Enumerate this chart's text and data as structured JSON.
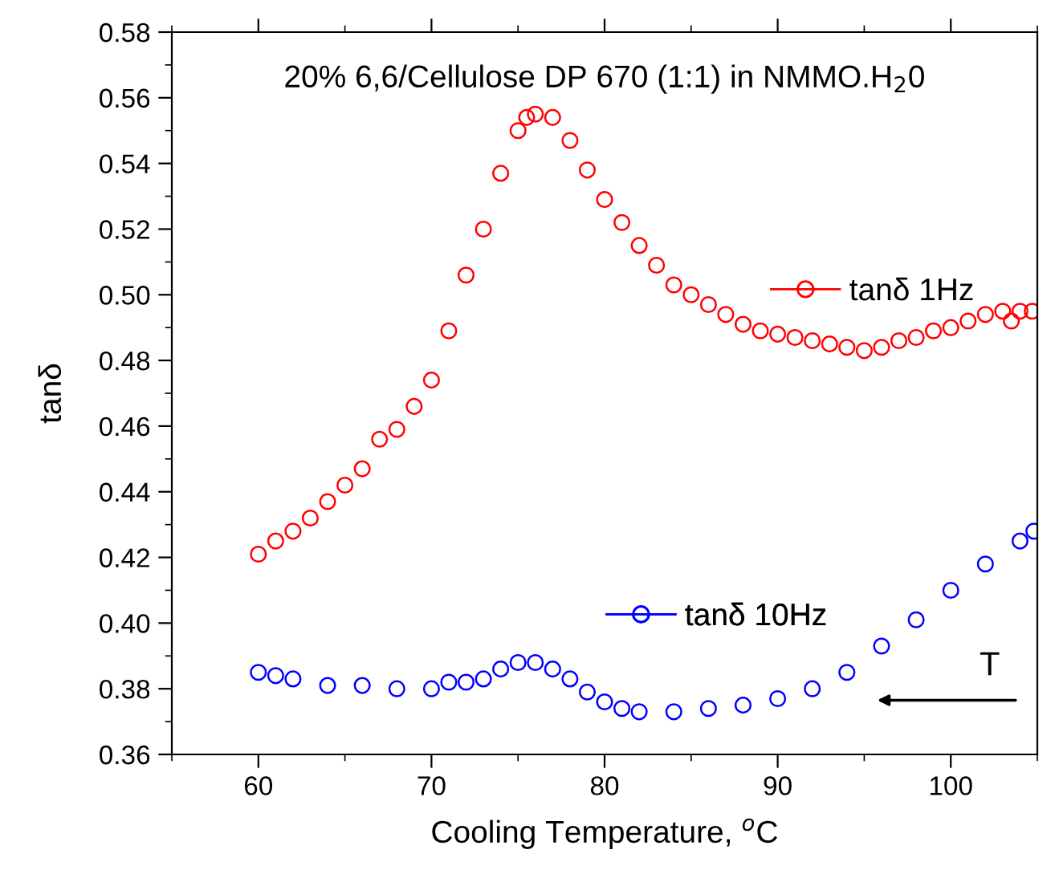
{
  "chart_data": {
    "type": "scatter",
    "title": "20% 6,6/Cellulose DP 670 (1:1) in NMMO.H$_{2}$0",
    "xlabel": "Cooling Temperature, $^{o}$C",
    "ylabel": "tanδ",
    "xlim": [
      55,
      105
    ],
    "xticks": [
      60,
      70,
      80,
      90,
      100
    ],
    "ylim": [
      0.36,
      0.58
    ],
    "yticks": [
      0.36,
      0.38,
      {
        "value": 0.4,
        "label": "0.40"
      },
      0.42,
      0.44,
      0.46,
      0.48,
      {
        "value": 0.5,
        "label": "0.50"
      },
      0.52,
      0.54,
      0.56,
      0.58
    ],
    "marker": "circle",
    "legend": "right",
    "grid": false,
    "annotations": [
      "T"
    ],
    "series": [
      {
        "name": "tanδ 1Hz",
        "color": "#ff0000",
        "x": [
          60,
          61,
          62,
          63,
          64,
          65,
          66,
          67,
          68,
          69,
          70,
          71,
          72,
          73,
          74,
          75,
          75.5,
          76,
          77,
          78,
          79,
          80,
          81,
          82,
          83,
          84,
          85,
          86,
          87,
          88,
          89,
          90,
          91,
          92,
          93,
          94,
          95,
          96,
          97,
          98,
          99,
          100,
          101,
          102,
          103,
          103.5,
          104,
          104.7
        ],
        "values": [
          0.421,
          0.425,
          0.428,
          0.432,
          0.437,
          0.442,
          0.447,
          0.456,
          0.459,
          0.466,
          0.474,
          0.489,
          0.506,
          0.52,
          0.537,
          0.55,
          0.554,
          0.555,
          0.554,
          0.547,
          0.538,
          0.529,
          0.522,
          0.515,
          0.509,
          0.503,
          0.5,
          0.497,
          0.494,
          0.491,
          0.489,
          0.488,
          0.487,
          0.486,
          0.485,
          0.484,
          0.483,
          0.484,
          0.486,
          0.487,
          0.489,
          0.49,
          0.492,
          0.494,
          0.495,
          0.492,
          0.495,
          0.495
        ]
      },
      {
        "name": "tanδ 10Hz",
        "color": "#0000ff",
        "x": [
          60,
          61,
          62,
          64,
          66,
          68,
          70,
          71,
          72,
          73,
          74,
          75,
          76,
          77,
          78,
          79,
          80,
          81,
          82,
          84,
          86,
          88,
          90,
          92,
          94,
          96,
          98,
          100,
          102,
          104,
          104.8
        ],
        "values": [
          0.385,
          0.384,
          0.383,
          0.381,
          0.381,
          0.38,
          0.38,
          0.382,
          0.382,
          0.383,
          0.386,
          0.388,
          0.388,
          0.386,
          0.383,
          0.379,
          0.376,
          0.374,
          0.373,
          0.373,
          0.374,
          0.375,
          0.377,
          0.38,
          0.385,
          0.393,
          0.401,
          0.41,
          0.418,
          0.425,
          0.428
        ]
      }
    ]
  }
}
